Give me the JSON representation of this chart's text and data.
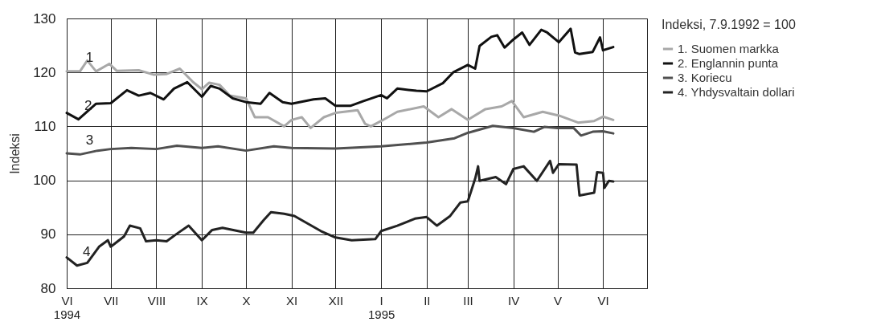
{
  "chart_data": {
    "type": "line",
    "ylabel": "Indeksi",
    "legend_title": "Indeksi, 7.9.1992 = 100",
    "legend": "right",
    "grid": true,
    "line_style": "solid",
    "xlim": [
      "1994-06-01",
      "1995-07-01"
    ],
    "xticks": [
      {
        "value": "1994-06-01",
        "label": "VI\n1994"
      },
      {
        "value": "1994-07-01",
        "label": "VII"
      },
      {
        "value": "1994-08-01",
        "label": "VIII"
      },
      {
        "value": "1994-09-01",
        "label": "IX"
      },
      {
        "value": "1994-10-01",
        "label": "X"
      },
      {
        "value": "1994-11-01",
        "label": "XI"
      },
      {
        "value": "1994-12-01",
        "label": "XII"
      },
      {
        "value": "1995-01-01",
        "label": "I\n1995"
      },
      {
        "value": "1995-02-01",
        "label": "II"
      },
      {
        "value": "1995-03-01",
        "label": "III"
      },
      {
        "value": "1995-04-01",
        "label": "IV"
      },
      {
        "value": "1995-05-01",
        "label": "V"
      },
      {
        "value": "1995-06-01",
        "label": "VI"
      }
    ],
    "ylim": [
      80,
      130
    ],
    "yticks": [
      80,
      90,
      100,
      110,
      120,
      130
    ],
    "annotations": [
      "1",
      "2",
      "3",
      "4"
    ],
    "series": [
      {
        "name": "1. Suomen markka",
        "color": "#a8a8a8",
        "x": [
          "1994-06-01",
          "1994-06-10",
          "1994-06-15",
          "1994-06-21",
          "1994-06-30",
          "1994-07-05",
          "1994-07-20",
          "1994-07-30",
          "1994-08-08",
          "1994-08-17",
          "1994-08-26",
          "1994-09-01",
          "1994-09-06",
          "1994-09-13",
          "1994-09-20",
          "1994-10-01",
          "1994-10-07",
          "1994-10-16",
          "1994-10-27",
          "1994-11-01",
          "1994-11-08",
          "1994-11-14",
          "1994-11-23",
          "1994-12-01",
          "1994-12-16",
          "1994-12-21",
          "1994-12-25",
          "1995-01-01",
          "1995-01-12",
          "1995-01-30",
          "1995-02-09",
          "1995-02-18",
          "1995-03-01",
          "1995-03-13",
          "1995-03-24",
          "1995-03-31",
          "1995-04-08",
          "1995-04-21",
          "1995-05-02",
          "1995-05-15",
          "1995-05-26",
          "1995-06-01",
          "1995-06-08"
        ],
        "values": [
          120.2,
          120.2,
          122.2,
          120.2,
          121.6,
          120.3,
          120.4,
          119.6,
          119.7,
          120.7,
          118.2,
          116.9,
          118.1,
          117.7,
          115.7,
          115.2,
          111.7,
          111.7,
          110,
          111.2,
          111.7,
          109.7,
          111.7,
          112.5,
          113,
          110.5,
          110,
          111,
          112.7,
          113.7,
          111.7,
          113.2,
          111.2,
          113.2,
          113.7,
          114.7,
          111.7,
          112.7,
          112,
          110.7,
          111,
          111.8,
          111.2
        ]
      },
      {
        "name": "2. Englannin punta",
        "color": "#111111",
        "x": [
          "1994-06-01",
          "1994-06-09",
          "1994-06-21",
          "1994-07-01",
          "1994-07-12",
          "1994-07-20",
          "1994-07-28",
          "1994-08-06",
          "1994-08-13",
          "1994-08-22",
          "1994-09-01",
          "1994-09-07",
          "1994-09-13",
          "1994-09-22",
          "1994-10-01",
          "1994-10-11",
          "1994-10-17",
          "1994-10-26",
          "1994-11-01",
          "1994-11-16",
          "1994-11-24",
          "1994-12-01",
          "1994-12-11",
          "1994-12-20",
          "1995-01-01",
          "1995-01-05",
          "1995-01-12",
          "1995-01-25",
          "1995-02-01",
          "1995-02-12",
          "1995-02-19",
          "1995-03-01",
          "1995-03-06",
          "1995-03-09",
          "1995-03-17",
          "1995-03-21",
          "1995-03-26",
          "1995-04-01",
          "1995-04-07",
          "1995-04-12",
          "1995-04-20",
          "1995-04-24",
          "1995-05-02",
          "1995-05-10",
          "1995-05-13",
          "1995-05-16",
          "1995-05-25",
          "1995-05-30",
          "1995-06-01",
          "1995-06-08"
        ],
        "values": [
          112.5,
          111.3,
          114.2,
          114.3,
          116.7,
          115.7,
          116.2,
          115,
          117,
          118.2,
          115.5,
          117.5,
          117,
          115.2,
          114.5,
          114.2,
          116.2,
          114.5,
          114.2,
          115,
          115.2,
          113.8,
          113.8,
          114.7,
          115.8,
          115.2,
          117,
          116.6,
          116.5,
          118,
          120,
          121.4,
          120.7,
          124.9,
          126.6,
          126.9,
          124.6,
          126.1,
          127.4,
          125.1,
          127.9,
          127.4,
          125.6,
          128.1,
          123.7,
          123.4,
          123.8,
          126.5,
          124.1,
          124.7
        ]
      },
      {
        "name": "3. Koriecu",
        "color": "#505050",
        "x": [
          "1994-06-01",
          "1994-06-10",
          "1994-06-22",
          "1994-07-01",
          "1994-07-15",
          "1994-08-01",
          "1994-08-15",
          "1994-09-01",
          "1994-09-12",
          "1994-10-01",
          "1994-10-20",
          "1994-11-01",
          "1994-12-01",
          "1995-01-01",
          "1995-02-01",
          "1995-02-20",
          "1995-03-01",
          "1995-03-18",
          "1995-04-01",
          "1995-04-15",
          "1995-04-22",
          "1995-05-01",
          "1995-05-12",
          "1995-05-17",
          "1995-05-25",
          "1995-06-01",
          "1995-06-08"
        ],
        "values": [
          105,
          104.8,
          105.5,
          105.8,
          106,
          105.8,
          106.4,
          106,
          106.3,
          105.5,
          106.3,
          106,
          105.9,
          106.3,
          107,
          107.8,
          108.8,
          110.1,
          109.7,
          109,
          109.9,
          109.7,
          109.7,
          108.3,
          109,
          109.1,
          108.7
        ]
      },
      {
        "name": "4. Yhdysvaltain dollari",
        "color": "#222222",
        "x": [
          "1994-06-01",
          "1994-06-08",
          "1994-06-15",
          "1994-06-23",
          "1994-06-29",
          "1994-07-01",
          "1994-07-10",
          "1994-07-14",
          "1994-07-21",
          "1994-07-25",
          "1994-08-01",
          "1994-08-08",
          "1994-08-15",
          "1994-08-23",
          "1994-09-01",
          "1994-09-08",
          "1994-09-15",
          "1994-10-01",
          "1994-10-06",
          "1994-10-13",
          "1994-10-18",
          "1994-10-27",
          "1994-11-03",
          "1994-11-08",
          "1994-11-21",
          "1994-12-01",
          "1994-12-12",
          "1994-12-28",
          "1995-01-01",
          "1995-01-12",
          "1995-01-24",
          "1995-02-01",
          "1995-02-08",
          "1995-02-17",
          "1995-02-24",
          "1995-03-01",
          "1995-03-06",
          "1995-03-08",
          "1995-03-09",
          "1995-03-20",
          "1995-03-27",
          "1995-04-01",
          "1995-04-08",
          "1995-04-17",
          "1995-04-26",
          "1995-04-28",
          "1995-05-02",
          "1995-05-14",
          "1995-05-16",
          "1995-05-26",
          "1995-05-28",
          "1995-06-01",
          "1995-06-02",
          "1995-06-05",
          "1995-06-08"
        ],
        "values": [
          85.7,
          84.2,
          84.7,
          87.7,
          88.9,
          87.7,
          89.6,
          91.6,
          91.1,
          88.7,
          88.9,
          88.7,
          90.1,
          91.6,
          88.9,
          90.8,
          91.2,
          90.3,
          90.3,
          92.6,
          94.1,
          93.8,
          93.4,
          92.6,
          90.6,
          89.4,
          88.9,
          89.1,
          90.6,
          91.6,
          92.9,
          93.2,
          91.6,
          93.4,
          95.9,
          96.1,
          100.3,
          102.6,
          99.9,
          100.6,
          99.3,
          102.1,
          102.6,
          99.9,
          103.6,
          101.4,
          103,
          102.9,
          97.2,
          97.7,
          101.5,
          101.4,
          98.6,
          99.9,
          99.8
        ]
      }
    ]
  }
}
